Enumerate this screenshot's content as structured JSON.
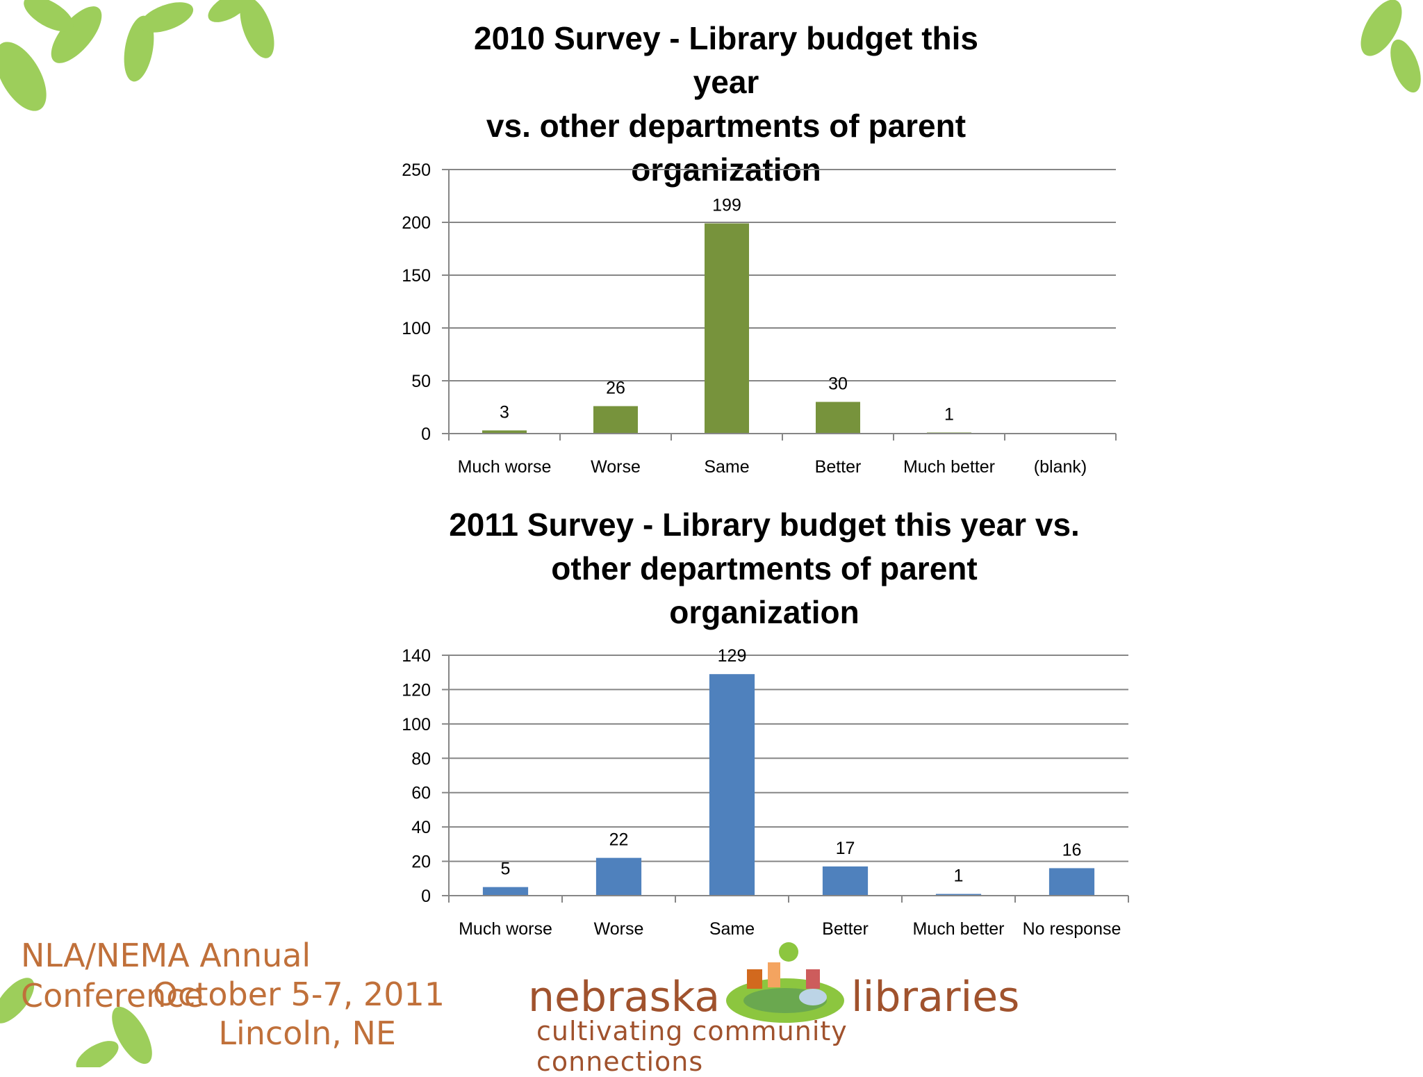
{
  "charts_text": {
    "c2010_title": "2010 Survey - Library budget this year\nvs. other departments of parent\norganization",
    "c2011_title": "2011 Survey - Library budget this year vs.\nother departments of parent\norganization"
  },
  "footer": {
    "conference_name": "NLA/NEMA Annual Conference",
    "conference_dates": "October 5-7, 2011",
    "conference_place": "Lincoln, NE"
  },
  "logo": {
    "word_left": "nebraska",
    "word_right": "libraries",
    "tagline": "cultivating community connections"
  },
  "colors": {
    "series_2010": "#77933c",
    "series_2011": "#4f81bd",
    "conference_text": "#c0703a",
    "logo_text": "#a0522d",
    "leaf": "#8cc63f"
  },
  "chart_data": [
    {
      "type": "bar",
      "title": "2010 Survey - Library budget this year vs. other departments of parent organization",
      "categories": [
        "Much worse",
        "Worse",
        "Same",
        "Better",
        "Much better",
        "(blank)"
      ],
      "values": [
        3,
        26,
        199,
        30,
        1,
        null
      ],
      "data_labels": [
        "3",
        "26",
        "199",
        "30",
        "1",
        ""
      ],
      "yticks": [
        "0",
        "50",
        "100",
        "150",
        "200",
        "250"
      ],
      "ylim": [
        0,
        250
      ],
      "grid": true,
      "legend": "none",
      "color": "#77933c"
    },
    {
      "type": "bar",
      "title": "2011 Survey - Library budget this year vs. other departments of parent organization",
      "categories": [
        "Much worse",
        "Worse",
        "Same",
        "Better",
        "Much better",
        "No response"
      ],
      "values": [
        5,
        22,
        129,
        17,
        1,
        16
      ],
      "data_labels": [
        "5",
        "22",
        "129",
        "17",
        "1",
        "16"
      ],
      "yticks": [
        "0",
        "20",
        "40",
        "60",
        "80",
        "100",
        "120",
        "140"
      ],
      "ylim": [
        0,
        140
      ],
      "grid": true,
      "legend": "none",
      "color": "#4f81bd"
    }
  ]
}
